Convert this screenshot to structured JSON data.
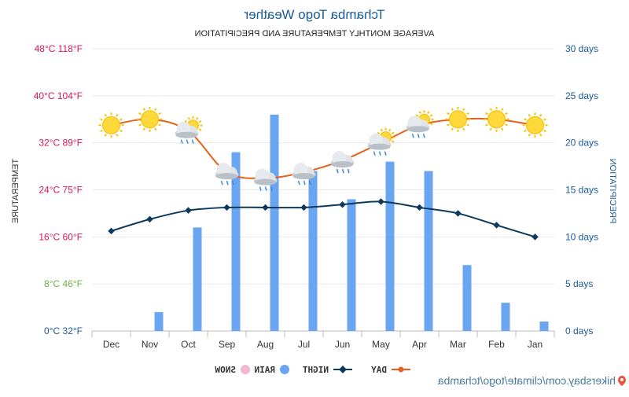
{
  "chart_data": {
    "type": "line",
    "title": "Tchamba Togo Weather",
    "subtitle": "AVERAGE MONTHLY TEMPERATURE AND PRECIPITATION",
    "ylabel_left": "PRECIPITATION",
    "ylabel_right": "TEMPERATURE",
    "categories": [
      "Jan",
      "Feb",
      "Mar",
      "Apr",
      "May",
      "Jun",
      "Jul",
      "Aug",
      "Sep",
      "Oct",
      "Nov",
      "Dec"
    ],
    "left_axis_ticks": [
      "0 days",
      "5 days",
      "10 days",
      "15 days",
      "20 days",
      "25 days",
      "30 days"
    ],
    "left_axis_values": [
      0,
      5,
      10,
      15,
      20,
      25,
      30
    ],
    "right_axis_ticks": [
      "0°C 32°F",
      "8°C 46°F",
      "16°C 60°F",
      "24°C 75°F",
      "32°C 89°F",
      "40°C 104°F",
      "48°C 118°F"
    ],
    "right_axis_values": [
      0,
      8,
      16,
      24,
      32,
      40,
      48
    ],
    "ylim_left": [
      0,
      30
    ],
    "ylim_right": [
      0,
      48
    ],
    "series": [
      {
        "name": "DAY",
        "kind": "line",
        "axis": "temperature_c",
        "color": "#e8601c",
        "values": [
          35,
          36,
          36,
          35,
          32,
          29,
          27,
          26,
          27,
          34,
          36,
          35
        ]
      },
      {
        "name": "NIGHT",
        "kind": "line",
        "axis": "temperature_c",
        "color": "#0d3a5c",
        "values": [
          16,
          18,
          20,
          21,
          22,
          21.5,
          21,
          21,
          21,
          20.5,
          19,
          17
        ]
      },
      {
        "name": "RAIN",
        "kind": "bar",
        "axis": "days",
        "color": "#6aa5f2",
        "values": [
          1,
          3,
          7,
          17,
          18,
          14,
          17,
          23,
          19,
          11,
          2,
          0
        ]
      },
      {
        "name": "SNOW",
        "kind": "bar",
        "axis": "days",
        "color": "#f2b8d0",
        "values": [
          0,
          0,
          0,
          0,
          0,
          0,
          0,
          0,
          0,
          0,
          0,
          0
        ]
      }
    ],
    "weather_icons": [
      "sun",
      "sun",
      "sun",
      "sun-cloud",
      "sun-cloud",
      "rain-cloud",
      "rain-cloud",
      "rain-cloud",
      "rain-cloud",
      "sun-cloud",
      "sun",
      "sun"
    ],
    "legend_position": "bottom",
    "grid": true
  },
  "footer": {
    "url": "hikersbay.com/climate/togo/tchamba"
  },
  "colors": {
    "title": "#1a5a96",
    "left_axis": "#1a5a96",
    "right_axis": "#d8145a",
    "right_axis_low": "#6db33f",
    "footer": "#4a7a9b"
  }
}
